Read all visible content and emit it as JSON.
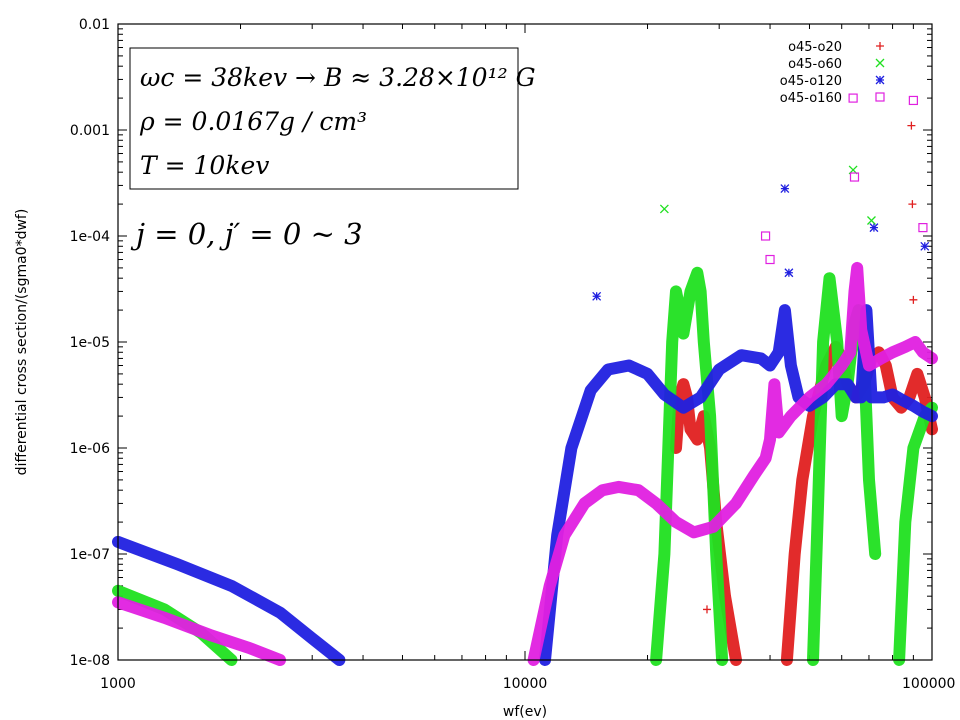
{
  "chart_data": {
    "type": "scatter",
    "x_scale": "log",
    "y_scale": "log",
    "xlim": [
      1000,
      100000
    ],
    "ylim": [
      1e-08,
      0.01
    ],
    "xlabel": "wf(ev)",
    "ylabel": "differential cross section/(sgma0*dwf)",
    "x_ticks": [
      {
        "value": 1000,
        "label": "1000"
      },
      {
        "value": 10000,
        "label": "10000"
      },
      {
        "value": 100000,
        "label": "100000"
      }
    ],
    "y_ticks": [
      {
        "value": 1e-08,
        "label": "1e-08"
      },
      {
        "value": 1e-07,
        "label": "1e-07"
      },
      {
        "value": 1e-06,
        "label": "1e-06"
      },
      {
        "value": 1e-05,
        "label": "1e-05"
      },
      {
        "value": 0.0001,
        "label": "1e-04"
      },
      {
        "value": 0.001,
        "label": "0.001"
      },
      {
        "value": 0.01,
        "label": "0.01"
      }
    ],
    "legend_position": "top-right",
    "annotations": {
      "box_lines": [
        "ωc = 38kev → B ≈ 3.28×10¹² G",
        "ρ = 0.0167g / cm³",
        "T = 10kev"
      ],
      "note": "j = 0, j′ = 0 ~ 3"
    },
    "series": [
      {
        "name": "o45-o20",
        "marker": "plus",
        "color": "#e02020",
        "segments": [
          [
            [
              23500,
              1e-06
            ],
            [
              24000,
              3e-06
            ],
            [
              24500,
              4e-06
            ],
            [
              25000,
              3e-06
            ],
            [
              25500,
              1.5e-06
            ],
            [
              26500,
              1.2e-06
            ],
            [
              27500,
              2e-06
            ],
            [
              28500,
              1e-06
            ],
            [
              29500,
              2e-07
            ],
            [
              31000,
              4e-08
            ],
            [
              33000,
              1e-08
            ]
          ],
          [
            [
              44000,
              1e-08
            ],
            [
              46000,
              1e-07
            ],
            [
              48000,
              5e-07
            ],
            [
              51000,
              2e-06
            ],
            [
              55000,
              6e-06
            ],
            [
              58000,
              9e-06
            ],
            [
              60000,
              7e-06
            ],
            [
              62000,
              4e-06
            ],
            [
              65000,
              3e-06
            ],
            [
              68000,
              4e-06
            ],
            [
              71000,
              7e-06
            ],
            [
              74000,
              8e-06
            ],
            [
              77000,
              6e-06
            ],
            [
              80000,
              3e-06
            ],
            [
              84000,
              2.4e-06
            ],
            [
              88000,
              3e-06
            ],
            [
              92000,
              5e-06
            ],
            [
              96000,
              3e-06
            ],
            [
              100000,
              1.5e-06
            ]
          ]
        ],
        "points": [
          [
            89000,
            0.0011
          ],
          [
            89500,
            0.0002
          ],
          [
            90000,
            2.5e-05
          ],
          [
            22000,
            2.5e-07
          ],
          [
            28000,
            3e-08
          ]
        ]
      },
      {
        "name": "o45-o60",
        "marker": "cross",
        "color": "#20e020",
        "segments": [
          [
            [
              1000,
              4.5e-08
            ],
            [
              1300,
              3e-08
            ],
            [
              1600,
              1.8e-08
            ],
            [
              1900,
              1e-08
            ]
          ],
          [
            [
              21000,
              1e-08
            ],
            [
              22000,
              1e-07
            ],
            [
              22500,
              1e-06
            ],
            [
              23000,
              1e-05
            ],
            [
              23500,
              3e-05
            ],
            [
              24000,
              2e-05
            ],
            [
              24500,
              1.2e-05
            ],
            [
              25500,
              3e-05
            ],
            [
              26500,
              4.5e-05
            ],
            [
              27000,
              3e-05
            ],
            [
              27500,
              1e-05
            ],
            [
              28500,
              2e-06
            ],
            [
              29500,
              1e-07
            ],
            [
              30500,
              1e-08
            ]
          ],
          [
            [
              51000,
              1e-08
            ],
            [
              52500,
              3e-07
            ],
            [
              54000,
              1e-05
            ],
            [
              56000,
              4e-05
            ],
            [
              58500,
              1e-05
            ],
            [
              60000,
              2e-06
            ],
            [
              62000,
              4e-06
            ],
            [
              64500,
              1.5e-05
            ],
            [
              66000,
              2e-05
            ],
            [
              68000,
              8e-06
            ],
            [
              70000,
              5e-07
            ],
            [
              72500,
              1e-07
            ]
          ],
          [
            [
              83000,
              1e-08
            ],
            [
              86000,
              2e-07
            ],
            [
              90000,
              1e-06
            ],
            [
              96000,
              2e-06
            ],
            [
              100000,
              2.4e-06
            ]
          ]
        ],
        "points": [
          [
            22000,
            0.00018
          ],
          [
            64000,
            0.00042
          ],
          [
            71000,
            0.00014
          ]
        ]
      },
      {
        "name": "o45-o120",
        "marker": "star",
        "color": "#2020e0",
        "segments": [
          [
            [
              1000,
              1.3e-07
            ],
            [
              1400,
              8e-08
            ],
            [
              1900,
              5e-08
            ],
            [
              2500,
              2.8e-08
            ],
            [
              3000,
              1.6e-08
            ],
            [
              3500,
              1e-08
            ]
          ],
          [
            [
              11200,
              1e-08
            ],
            [
              12000,
              1.5e-07
            ],
            [
              13000,
              1e-06
            ],
            [
              14500,
              3.5e-06
            ],
            [
              16000,
              5.5e-06
            ],
            [
              18000,
              6e-06
            ],
            [
              20000,
              5e-06
            ],
            [
              22000,
              3.2e-06
            ],
            [
              24500,
              2.4e-06
            ],
            [
              27000,
              3e-06
            ],
            [
              30000,
              5.5e-06
            ],
            [
              34000,
              7.5e-06
            ],
            [
              38000,
              7e-06
            ],
            [
              40000,
              6e-06
            ],
            [
              42000,
              8e-06
            ],
            [
              43500,
              2e-05
            ],
            [
              45000,
              6e-06
            ],
            [
              47000,
              3e-06
            ],
            [
              50000,
              2.5e-06
            ],
            [
              54000,
              3e-06
            ],
            [
              58000,
              4e-06
            ],
            [
              62000,
              4e-06
            ],
            [
              65000,
              3e-06
            ],
            [
              67000,
              3e-06
            ],
            [
              69000,
              2e-05
            ],
            [
              71000,
              3e-06
            ],
            [
              76000,
              3e-06
            ],
            [
              80000,
              3.2e-06
            ],
            [
              85000,
              2.8e-06
            ],
            [
              90000,
              2.5e-06
            ],
            [
              95000,
              2.2e-06
            ],
            [
              100000,
              2e-06
            ]
          ]
        ],
        "points": [
          [
            15000,
            2.7e-05
          ],
          [
            43500,
            0.00028
          ],
          [
            44500,
            4.5e-05
          ],
          [
            72000,
            0.00012
          ],
          [
            96000,
            8e-05
          ]
        ]
      },
      {
        "name": "o45-o160",
        "marker": "square",
        "color": "#e020e0",
        "segments": [
          [
            [
              1000,
              3.5e-08
            ],
            [
              1300,
              2.5e-08
            ],
            [
              1700,
              1.7e-08
            ],
            [
              2100,
              1.3e-08
            ],
            [
              2500,
              1e-08
            ]
          ],
          [
            [
              10500,
              1e-08
            ],
            [
              11500,
              5e-08
            ],
            [
              12500,
              1.5e-07
            ],
            [
              14000,
              3e-07
            ],
            [
              15500,
              4e-07
            ],
            [
              17000,
              4.3e-07
            ],
            [
              19000,
              4e-07
            ],
            [
              21000,
              3e-07
            ],
            [
              23500,
              2e-07
            ],
            [
              26000,
              1.6e-07
            ],
            [
              29000,
              1.8e-07
            ],
            [
              33000,
              3e-07
            ],
            [
              36500,
              5.5e-07
            ],
            [
              39000,
              8e-07
            ],
            [
              40000,
              1.2e-06
            ],
            [
              41000,
              4e-06
            ],
            [
              42000,
              1.4e-06
            ],
            [
              45000,
              2e-06
            ],
            [
              50000,
              3e-06
            ],
            [
              55000,
              4e-06
            ],
            [
              60000,
              6e-06
            ],
            [
              63000,
              8e-06
            ],
            [
              64500,
              3e-05
            ],
            [
              65500,
              5e-05
            ],
            [
              67000,
              1.3e-05
            ],
            [
              70000,
              6e-06
            ],
            [
              75000,
              7e-06
            ],
            [
              80000,
              8e-06
            ],
            [
              86000,
              9e-06
            ],
            [
              91000,
              1e-05
            ],
            [
              95000,
              8e-06
            ],
            [
              100000,
              7e-06
            ]
          ]
        ],
        "points": [
          [
            39000,
            0.0001
          ],
          [
            40000,
            6e-05
          ],
          [
            64000,
            0.002
          ],
          [
            90000,
            0.0019
          ],
          [
            64500,
            0.00036
          ],
          [
            95000,
            0.00012
          ]
        ]
      }
    ]
  }
}
